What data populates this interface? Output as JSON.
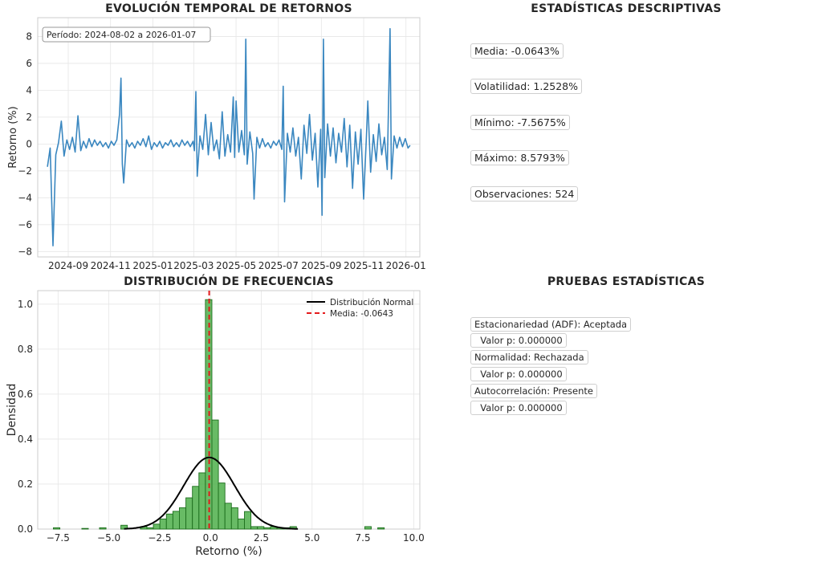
{
  "titles": {
    "timeseries": "EVOLUCIÓN TEMPORAL DE RETORNOS",
    "descriptive": "ESTADÍSTICAS DESCRIPTIVAS",
    "histogram": "DISTRIBUCIÓN DE FRECUENCIAS",
    "tests": "PRUEBAS ESTADÍSTICAS"
  },
  "descriptive_stats": [
    "Media: -0.0643%",
    "Volatilidad: 1.2528%",
    "Mínimo: -7.5675%",
    "Máximo: 8.5793%",
    "Observaciones: 524"
  ],
  "tests": [
    "Estacionariedad (ADF): Aceptada",
    "  Valor p: 0.000000",
    "Normalidad: Rechazada",
    "  Valor p: 0.000000",
    "Autocorrelación: Presente",
    "  Valor p: 0.000000"
  ],
  "colors": {
    "line": "#3a87c0",
    "bars": "#4daf4a",
    "bar_edge": "#1f6f1f",
    "normal": "#000000",
    "mean": "#e41a1c",
    "grid": "#e6e6e6"
  },
  "chart_data": [
    {
      "type": "line",
      "title": "EVOLUCIÓN TEMPORAL DE RETORNOS",
      "ylabel": "Retorno (%)",
      "xlabel": "",
      "annotation": "Período: 2024-08-02 a 2026-01-07",
      "x_range": [
        "2024-08-02",
        "2026-01-07"
      ],
      "ylim": [
        -8.4,
        9.4
      ],
      "yticks": [
        -8,
        -6,
        -4,
        -2,
        0,
        2,
        4,
        6,
        8
      ],
      "xticks": [
        "2024-09",
        "2024-11",
        "2025-01",
        "2025-03",
        "2025-05",
        "2025-07",
        "2025-09",
        "2025-11",
        "2026-01"
      ],
      "grid": true,
      "points": [
        [
          "2024-08-02",
          -1.7
        ],
        [
          "2024-08-06",
          -0.3
        ],
        [
          "2024-08-10",
          -7.57
        ],
        [
          "2024-08-14",
          -0.8
        ],
        [
          "2024-08-18",
          0.1
        ],
        [
          "2024-08-22",
          1.7
        ],
        [
          "2024-08-26",
          -0.9
        ],
        [
          "2024-08-30",
          0.3
        ],
        [
          "2024-09-03",
          -0.4
        ],
        [
          "2024-09-07",
          0.5
        ],
        [
          "2024-09-11",
          -0.6
        ],
        [
          "2024-09-15",
          2.1
        ],
        [
          "2024-09-19",
          -0.5
        ],
        [
          "2024-09-23",
          0.2
        ],
        [
          "2024-09-27",
          -0.3
        ],
        [
          "2024-10-01",
          0.4
        ],
        [
          "2024-10-05",
          -0.2
        ],
        [
          "2024-10-09",
          0.3
        ],
        [
          "2024-10-13",
          -0.1
        ],
        [
          "2024-10-17",
          0.2
        ],
        [
          "2024-10-21",
          -0.2
        ],
        [
          "2024-10-25",
          0.1
        ],
        [
          "2024-10-29",
          -0.3
        ],
        [
          "2024-11-02",
          0.2
        ],
        [
          "2024-11-06",
          -0.1
        ],
        [
          "2024-11-10",
          0.3
        ],
        [
          "2024-11-14",
          2.2
        ],
        [
          "2024-11-16",
          4.9
        ],
        [
          "2024-11-18",
          -1.5
        ],
        [
          "2024-11-20",
          -2.9
        ],
        [
          "2024-11-24",
          0.3
        ],
        [
          "2024-11-28",
          -0.2
        ],
        [
          "2024-12-02",
          0.1
        ],
        [
          "2024-12-06",
          -0.3
        ],
        [
          "2024-12-10",
          0.2
        ],
        [
          "2024-12-14",
          -0.1
        ],
        [
          "2024-12-18",
          0.4
        ],
        [
          "2024-12-22",
          -0.2
        ],
        [
          "2024-12-26",
          0.6
        ],
        [
          "2024-12-30",
          -0.4
        ],
        [
          "2025-01-03",
          0.1
        ],
        [
          "2025-01-07",
          -0.2
        ],
        [
          "2025-01-11",
          0.2
        ],
        [
          "2025-01-15",
          -0.3
        ],
        [
          "2025-01-19",
          0.1
        ],
        [
          "2025-01-23",
          -0.1
        ],
        [
          "2025-01-27",
          0.3
        ],
        [
          "2025-01-31",
          -0.2
        ],
        [
          "2025-02-04",
          0.1
        ],
        [
          "2025-02-08",
          -0.2
        ],
        [
          "2025-02-12",
          0.3
        ],
        [
          "2025-02-16",
          -0.1
        ],
        [
          "2025-02-20",
          0.2
        ],
        [
          "2025-02-24",
          -0.2
        ],
        [
          "2025-02-28",
          0.2
        ],
        [
          "2025-03-02",
          -0.5
        ],
        [
          "2025-03-04",
          3.9
        ],
        [
          "2025-03-06",
          -2.4
        ],
        [
          "2025-03-10",
          0.6
        ],
        [
          "2025-03-14",
          -0.4
        ],
        [
          "2025-03-18",
          2.2
        ],
        [
          "2025-03-22",
          -0.8
        ],
        [
          "2025-03-26",
          1.6
        ],
        [
          "2025-03-30",
          -0.5
        ],
        [
          "2025-04-03",
          0.3
        ],
        [
          "2025-04-07",
          -1.1
        ],
        [
          "2025-04-11",
          2.4
        ],
        [
          "2025-04-15",
          -0.9
        ],
        [
          "2025-04-19",
          0.7
        ],
        [
          "2025-04-23",
          -0.6
        ],
        [
          "2025-04-27",
          3.5
        ],
        [
          "2025-04-29",
          -1.0
        ],
        [
          "2025-05-01",
          3.2
        ],
        [
          "2025-05-05",
          -0.6
        ],
        [
          "2025-05-09",
          1.0
        ],
        [
          "2025-05-13",
          -0.8
        ],
        [
          "2025-05-15",
          7.8
        ],
        [
          "2025-05-17",
          -1.5
        ],
        [
          "2025-05-21",
          0.9
        ],
        [
          "2025-05-25",
          -0.7
        ],
        [
          "2025-05-27",
          -4.1
        ],
        [
          "2025-05-31",
          0.5
        ],
        [
          "2025-06-04",
          -0.3
        ],
        [
          "2025-06-08",
          0.4
        ],
        [
          "2025-06-12",
          -0.2
        ],
        [
          "2025-06-16",
          0.1
        ],
        [
          "2025-06-20",
          -0.3
        ],
        [
          "2025-06-24",
          0.2
        ],
        [
          "2025-06-28",
          -0.1
        ],
        [
          "2025-07-02",
          0.3
        ],
        [
          "2025-07-06",
          -0.4
        ],
        [
          "2025-07-08",
          4.3
        ],
        [
          "2025-07-10",
          -4.3
        ],
        [
          "2025-07-14",
          0.8
        ],
        [
          "2025-07-18",
          -0.6
        ],
        [
          "2025-07-22",
          1.2
        ],
        [
          "2025-07-26",
          -0.9
        ],
        [
          "2025-07-30",
          0.5
        ],
        [
          "2025-08-03",
          -2.6
        ],
        [
          "2025-08-07",
          1.4
        ],
        [
          "2025-08-11",
          -0.7
        ],
        [
          "2025-08-15",
          2.2
        ],
        [
          "2025-08-19",
          -1.2
        ],
        [
          "2025-08-23",
          0.8
        ],
        [
          "2025-08-27",
          -3.2
        ],
        [
          "2025-08-31",
          1.1
        ],
        [
          "2025-09-02",
          -5.3
        ],
        [
          "2025-09-04",
          7.8
        ],
        [
          "2025-09-06",
          -2.5
        ],
        [
          "2025-09-10",
          1.5
        ],
        [
          "2025-09-14",
          -0.9
        ],
        [
          "2025-09-18",
          1.2
        ],
        [
          "2025-09-22",
          -1.4
        ],
        [
          "2025-09-26",
          0.8
        ],
        [
          "2025-09-30",
          -0.6
        ],
        [
          "2025-10-04",
          1.9
        ],
        [
          "2025-10-08",
          -1.7
        ],
        [
          "2025-10-12",
          1.4
        ],
        [
          "2025-10-16",
          -3.3
        ],
        [
          "2025-10-20",
          0.9
        ],
        [
          "2025-10-24",
          -1.5
        ],
        [
          "2025-10-28",
          1.1
        ],
        [
          "2025-11-01",
          -4.1
        ],
        [
          "2025-11-05",
          0.6
        ],
        [
          "2025-11-07",
          3.2
        ],
        [
          "2025-11-11",
          -2.1
        ],
        [
          "2025-11-15",
          0.7
        ],
        [
          "2025-11-19",
          -1.3
        ],
        [
          "2025-11-23",
          1.5
        ],
        [
          "2025-11-27",
          -0.8
        ],
        [
          "2025-12-01",
          0.5
        ],
        [
          "2025-12-05",
          -1.9
        ],
        [
          "2025-12-09",
          8.58
        ],
        [
          "2025-12-11",
          -2.6
        ],
        [
          "2025-12-15",
          0.6
        ],
        [
          "2025-12-19",
          -0.3
        ],
        [
          "2025-12-23",
          0.5
        ],
        [
          "2025-12-27",
          -0.2
        ],
        [
          "2025-12-31",
          0.4
        ],
        [
          "2026-01-04",
          -0.3
        ],
        [
          "2026-01-07",
          -0.1
        ]
      ]
    },
    {
      "type": "histogram",
      "title": "DISTRIBUCIÓN DE FRECUENCIAS",
      "xlabel": "Retorno (%)",
      "ylabel": "Densidad",
      "xlim": [
        -8.5,
        10.3
      ],
      "ylim": [
        0,
        1.06
      ],
      "xticks": [
        -7.5,
        -5.0,
        -2.5,
        0.0,
        2.5,
        5.0,
        7.5,
        10.0
      ],
      "yticks": [
        0.0,
        0.2,
        0.4,
        0.6,
        0.8,
        1.0
      ],
      "grid": true,
      "bin_width": 0.32,
      "bins": [
        [
          -7.57,
          0.006
        ],
        [
          -6.17,
          0.003
        ],
        [
          -5.3,
          0.006
        ],
        [
          -4.25,
          0.017
        ],
        [
          -3.29,
          0.011
        ],
        [
          -2.97,
          0.006
        ],
        [
          -2.65,
          0.022
        ],
        [
          -2.33,
          0.045
        ],
        [
          -2.01,
          0.067
        ],
        [
          -1.69,
          0.079
        ],
        [
          -1.37,
          0.095
        ],
        [
          -1.05,
          0.139
        ],
        [
          -0.73,
          0.19
        ],
        [
          -0.41,
          0.25
        ],
        [
          -0.09,
          1.02
        ],
        [
          0.23,
          0.485
        ],
        [
          0.55,
          0.205
        ],
        [
          0.87,
          0.115
        ],
        [
          1.19,
          0.095
        ],
        [
          1.51,
          0.045
        ],
        [
          1.83,
          0.078
        ],
        [
          2.15,
          0.011
        ],
        [
          2.47,
          0.011
        ],
        [
          2.79,
          0.006
        ],
        [
          3.11,
          0.011
        ],
        [
          3.43,
          0.006
        ],
        [
          3.75,
          0.006
        ],
        [
          4.07,
          0.011
        ],
        [
          7.75,
          0.011
        ],
        [
          8.39,
          0.006
        ]
      ],
      "normal_fit": {
        "mean": -0.0643,
        "std": 1.2528,
        "label": "Distribución Normal"
      },
      "mean_line": {
        "value": -0.0643,
        "label": "Media: -0.0643"
      },
      "legend_position": "top-right"
    }
  ]
}
